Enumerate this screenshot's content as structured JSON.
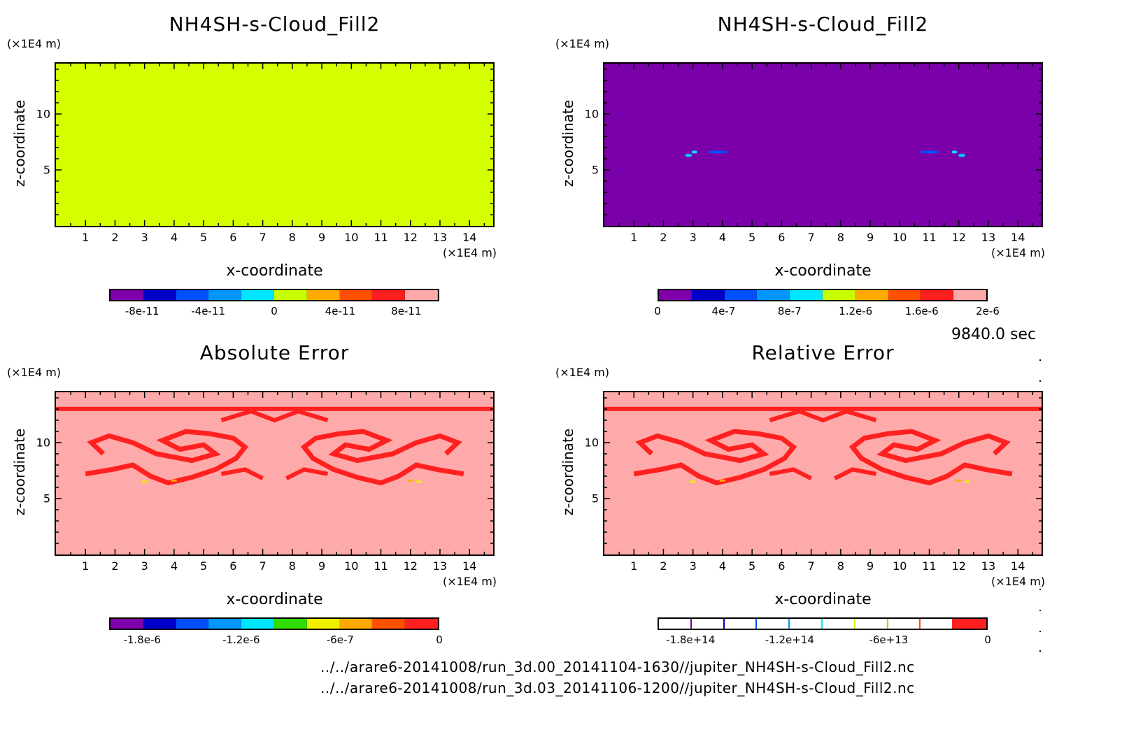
{
  "chart_data": [
    {
      "type": "heatmap",
      "title": "NH4SH-s-Cloud_Fill2",
      "xlabel": "x-coordinate",
      "ylabel": "z-coordinate",
      "x_unit": "(×1E4 m)",
      "y_unit": "(×1E4 m)",
      "xlim": [
        0,
        14.8
      ],
      "ylim": [
        0,
        14.5
      ],
      "x_ticks": [
        "1",
        "2",
        "3",
        "4",
        "5",
        "6",
        "7",
        "8",
        "9",
        "10",
        "11",
        "12",
        "13",
        "14"
      ],
      "y_ticks": [
        "5",
        "10"
      ],
      "field": "uniform",
      "fill_color": "#d4ff00",
      "colorbar": {
        "colors": [
          "#7f00aa",
          "#0000c8",
          "#0050ff",
          "#0096ff",
          "#00e6ff",
          "#c8ff00",
          "#ffaa00",
          "#ff5000",
          "#ff1e1e",
          "#ffaaaa"
        ],
        "labels": [
          "-8e-11",
          "-4e-11",
          "0",
          "4e-11",
          "8e-11"
        ],
        "label_positions": [
          1,
          3,
          5,
          7,
          9
        ]
      }
    },
    {
      "type": "heatmap",
      "title": "NH4SH-s-Cloud_Fill2",
      "xlabel": "x-coordinate",
      "ylabel": "z-coordinate",
      "x_unit": "(×1E4 m)",
      "y_unit": "(×1E4 m)",
      "xlim": [
        0,
        14.8
      ],
      "ylim": [
        0,
        14.5
      ],
      "x_ticks": [
        "1",
        "2",
        "3",
        "4",
        "5",
        "6",
        "7",
        "8",
        "9",
        "10",
        "11",
        "12",
        "13",
        "14"
      ],
      "y_ticks": [
        "5",
        "10"
      ],
      "field": "background-with-small-features",
      "fill_color": "#7a00aa",
      "colorbar": {
        "colors": [
          "#7f00aa",
          "#0000c8",
          "#0050ff",
          "#0096ff",
          "#00e6ff",
          "#c8ff00",
          "#ffaa00",
          "#ff5000",
          "#ff1e1e",
          "#ffaaaa"
        ],
        "labels": [
          "0",
          "4e-7",
          "8e-7",
          "1.2e-6",
          "1.6e-6",
          "2e-6"
        ],
        "label_positions": [
          0,
          2,
          4,
          6,
          8,
          10
        ]
      }
    },
    {
      "type": "heatmap",
      "title": "Absolute Error",
      "xlabel": "x-coordinate",
      "ylabel": "z-coordinate",
      "x_unit": "(×1E4 m)",
      "y_unit": "(×1E4 m)",
      "xlim": [
        0,
        14.8
      ],
      "ylim": [
        0,
        14.5
      ],
      "x_ticks": [
        "1",
        "2",
        "3",
        "4",
        "5",
        "6",
        "7",
        "8",
        "9",
        "10",
        "11",
        "12",
        "13",
        "14"
      ],
      "y_ticks": [
        "5",
        "10"
      ],
      "field": "error-pattern",
      "fill_color": "#ffaaaa",
      "pattern_color": "#ff2020",
      "colorbar": {
        "colors": [
          "#7f00aa",
          "#0000c8",
          "#0050ff",
          "#0096ff",
          "#00e6ff",
          "#32dc00",
          "#f0f000",
          "#ffaa00",
          "#ff5000",
          "#ff2020"
        ],
        "labels": [
          "-1.8e-6",
          "-1.2e-6",
          "-6e-7",
          "0"
        ],
        "label_positions": [
          1,
          4,
          7,
          10
        ]
      }
    },
    {
      "type": "heatmap",
      "title": "Relative Error",
      "xlabel": "x-coordinate",
      "ylabel": "z-coordinate",
      "x_unit": "(×1E4 m)",
      "y_unit": "(×1E4 m)",
      "xlim": [
        0,
        14.8
      ],
      "ylim": [
        0,
        14.5
      ],
      "x_ticks": [
        "1",
        "2",
        "3",
        "4",
        "5",
        "6",
        "7",
        "8",
        "9",
        "10",
        "11",
        "12",
        "13",
        "14"
      ],
      "y_ticks": [
        "5",
        "10"
      ],
      "field": "error-pattern",
      "fill_color": "#ffaaaa",
      "pattern_color": "#ff2020",
      "colorbar": {
        "style": "lines",
        "colors": [
          "#7f00aa",
          "#0000c8",
          "#0050ff",
          "#0096ff",
          "#00e6ff",
          "#c8ff00",
          "#ffaa00",
          "#ff5000",
          "#ff2020"
        ],
        "labels": [
          "-1.8e+14",
          "-1.2e+14",
          "-6e+13",
          "0"
        ],
        "label_positions": [
          1,
          4,
          7,
          10
        ]
      }
    }
  ],
  "annotations": {
    "time": "9840.0 sec",
    "file1": "../../arare6-20141008/run_3d.00_20141104-1630//jupiter_NH4SH-s-Cloud_Fill2.nc",
    "file2": "../../arare6-20141008/run_3d.03_20141106-1200//jupiter_NH4SH-s-Cloud_Fill2.nc"
  }
}
